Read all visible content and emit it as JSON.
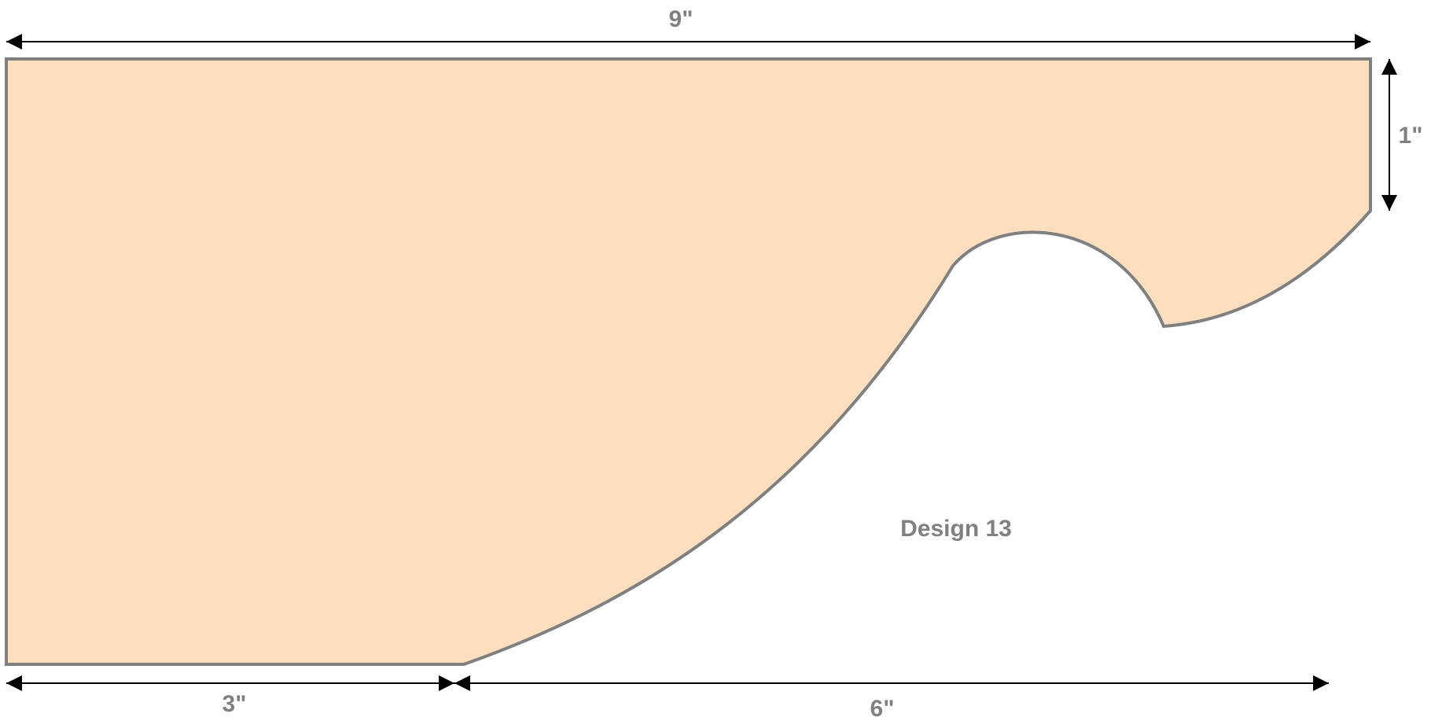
{
  "colors": {
    "shape_fill": "#FDDFC0",
    "shape_stroke": "#808080",
    "dimension_line": "#000000",
    "label_text": "#808080"
  },
  "dimensions": {
    "overall_width": "9\"",
    "right_height": "1\"",
    "bottom_left": "3\"",
    "bottom_right": "6\""
  },
  "design_name": "Design 13"
}
